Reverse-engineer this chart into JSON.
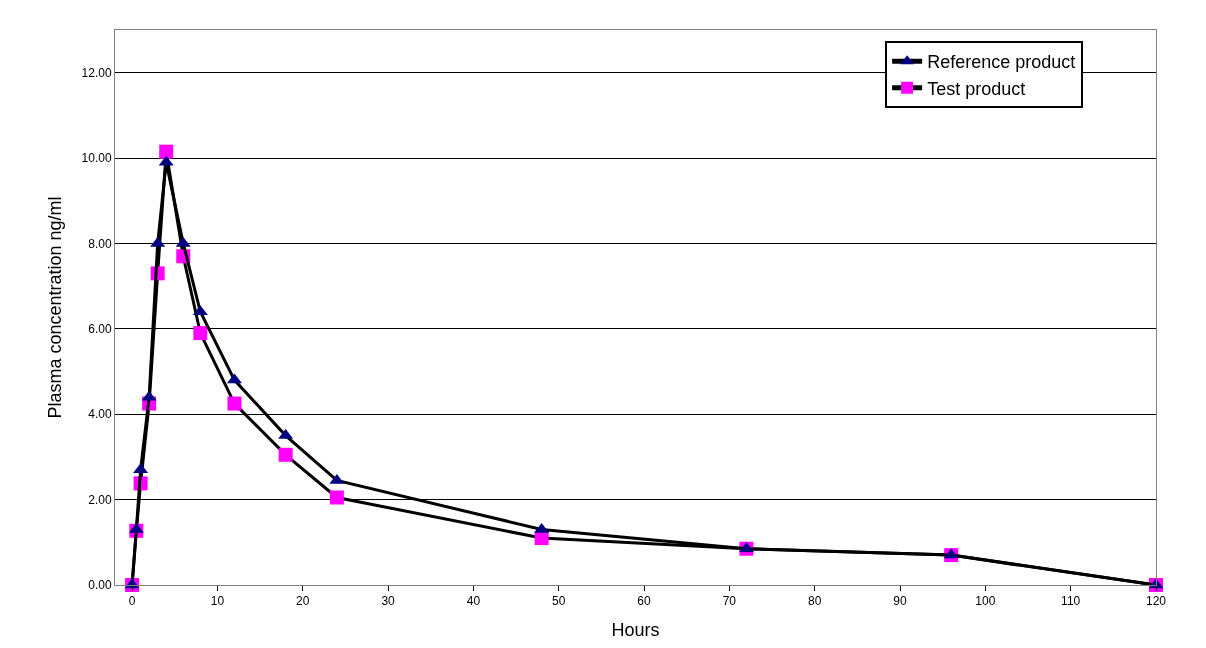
{
  "chart_data": {
    "type": "line",
    "xlabel": "Hours",
    "ylabel": "Plasma concentration ng/ml",
    "x": [
      0,
      0.5,
      1,
      2,
      3,
      4,
      6,
      8,
      12,
      18,
      24,
      48,
      72,
      96,
      120
    ],
    "series": [
      {
        "name": "Reference product",
        "color": "#000080",
        "marker": "triangle",
        "values": [
          0,
          1.3,
          2.7,
          4.4,
          8.0,
          9.9,
          8.0,
          6.4,
          4.8,
          3.5,
          2.45,
          1.3,
          0.85,
          0.7,
          0
        ]
      },
      {
        "name": "Test product",
        "color": "#ff00ff",
        "marker": "square",
        "values": [
          0,
          1.27,
          2.38,
          4.25,
          7.3,
          10.15,
          7.7,
          5.9,
          4.25,
          3.05,
          2.05,
          1.1,
          0.85,
          0.7,
          0
        ]
      }
    ],
    "xlim": [
      -2,
      120
    ],
    "xticks": [
      0,
      10,
      20,
      30,
      40,
      50,
      60,
      70,
      80,
      90,
      100,
      110,
      120
    ],
    "ylim": [
      0,
      13
    ],
    "yticks": [
      {
        "value": 0,
        "label": "0.00"
      },
      {
        "value": 2,
        "label": "2.00"
      },
      {
        "value": 4,
        "label": "4.00"
      },
      {
        "value": 6,
        "label": "6.00"
      },
      {
        "value": 8,
        "label": "8.00"
      },
      {
        "value": 10,
        "label": "10.00"
      },
      {
        "value": 12,
        "label": "12.00"
      }
    ],
    "grid": "y",
    "legend": "top right",
    "line_style": "solid"
  }
}
